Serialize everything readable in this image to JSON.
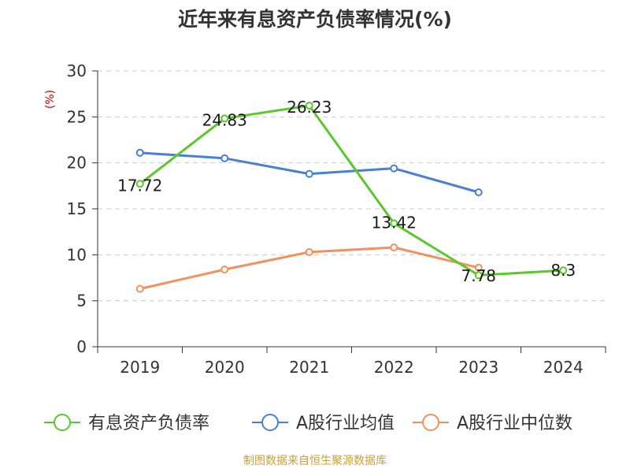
{
  "chart_data": {
    "type": "line",
    "title": "近年来有息资产负债率情况(%)",
    "ylabel": "(%)",
    "ylim": [
      0,
      30
    ],
    "yticks": [
      0,
      5,
      10,
      15,
      20,
      25,
      30
    ],
    "categories": [
      "2019",
      "2020",
      "2021",
      "2022",
      "2023",
      "2024"
    ],
    "grid": true,
    "legend_position": "bottom",
    "series": [
      {
        "name": "有息资产负债率",
        "color": "#5bc72c",
        "values": [
          17.72,
          24.83,
          26.23,
          13.42,
          7.78,
          8.3
        ],
        "data_labels": [
          "17.72",
          "24.83",
          "26.23",
          "13.42",
          "7.78",
          "8.3"
        ]
      },
      {
        "name": "A股行业均值",
        "color": "#4a7fd6",
        "values": [
          21.1,
          20.5,
          18.8,
          19.4,
          16.8,
          null
        ],
        "data_labels": []
      },
      {
        "name": "A股行业中位数",
        "color": "#f4905c",
        "values": [
          6.3,
          8.4,
          10.3,
          10.8,
          8.6,
          null
        ],
        "data_labels": []
      }
    ]
  },
  "footer": {
    "source": "制图数据来自恒生聚源数据库",
    "source_color": "#c8a03c"
  }
}
